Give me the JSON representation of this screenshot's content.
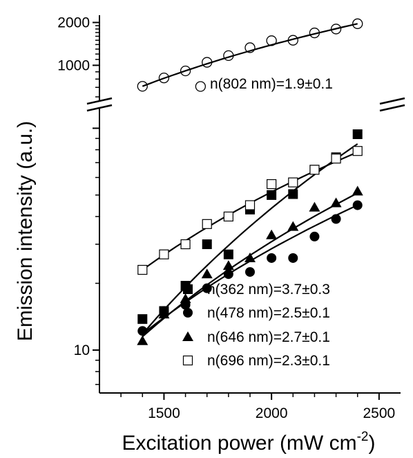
{
  "chart_data": {
    "type": "scatter",
    "xlabel": "Excitation power (mW cm",
    "xlabel_superscript": "-2",
    "xlabel_close": ")",
    "ylabel": "Emission intensity (a.u.)",
    "x_scale": "linear",
    "y_scale": "log",
    "axis_break": true,
    "xlim": [
      1200,
      2600
    ],
    "x_ticks": [
      1500,
      2000,
      2500
    ],
    "x_tick_labels": [
      "1500",
      "2000",
      "2500"
    ],
    "y_ticks": [
      10,
      1000,
      2000
    ],
    "y_tick_labels": [
      "10",
      "1000",
      "2000"
    ],
    "legend_position": "bottom-right",
    "upper_panel": {
      "ylim": [
        600,
        2200
      ],
      "series": [
        {
          "name": "n(802 nm)=1.9±0.1",
          "marker": "open-circle",
          "x": [
            1400,
            1500,
            1600,
            1700,
            1800,
            1900,
            2000,
            2100,
            2200,
            2300,
            2400
          ],
          "y": [
            712,
            815,
            913,
            1050,
            1170,
            1330,
            1490,
            1500,
            1690,
            1800,
            1960
          ],
          "outlier": {
            "x": 1670,
            "y": 710
          },
          "fit": {
            "x": [
              1400,
              2400
            ],
            "y": [
              712,
              1960
            ]
          }
        }
      ]
    },
    "lower_panel": {
      "ylim": [
        6.5,
        120
      ],
      "series": [
        {
          "name": "n(362 nm)=3.7±0.3",
          "marker": "filled-square",
          "x": [
            1400,
            1500,
            1600,
            1700,
            1800,
            1900,
            2000,
            2100,
            2200,
            2300,
            2400
          ],
          "y": [
            13.8,
            15,
            19.5,
            30,
            27,
            43,
            50,
            50.5,
            65,
            74,
            94
          ],
          "fit": {
            "x": [
              1400,
              2400
            ],
            "y": [
              11.8,
              85
            ]
          }
        },
        {
          "name": "n(478 nm)=2.5±0.1",
          "marker": "filled-circle",
          "x": [
            1400,
            1500,
            1600,
            1700,
            1800,
            1900,
            2000,
            2100,
            2200,
            2300,
            2400
          ],
          "y": [
            12.2,
            15,
            16,
            19,
            22,
            22.5,
            26,
            26,
            32.5,
            39,
            45
          ],
          "fit": {
            "x": [
              1400,
              2400
            ],
            "y": [
              11.8,
              45
            ]
          }
        },
        {
          "name": "n(646 nm)=2.7±0.1",
          "marker": "filled-triangle",
          "x": [
            1400,
            1500,
            1600,
            1700,
            1800,
            1900,
            2000,
            2100,
            2200,
            2300,
            2400
          ],
          "y": [
            11,
            14.5,
            17,
            22,
            24,
            26,
            33,
            36,
            44,
            46,
            52
          ],
          "fit": {
            "x": [
              1400,
              2400
            ],
            "y": [
              11.5,
              51
            ]
          }
        },
        {
          "name": "n(696 nm)=2.3±0.1",
          "marker": "open-square",
          "x": [
            1400,
            1500,
            1600,
            1700,
            1800,
            1900,
            2000,
            2100,
            2200,
            2300,
            2400
          ],
          "y": [
            23,
            27,
            30,
            37,
            40,
            45,
            56,
            57,
            65,
            73,
            79
          ],
          "fit": {
            "x": [
              1400,
              2400
            ],
            "y": [
              23,
              78
            ]
          }
        }
      ]
    }
  }
}
